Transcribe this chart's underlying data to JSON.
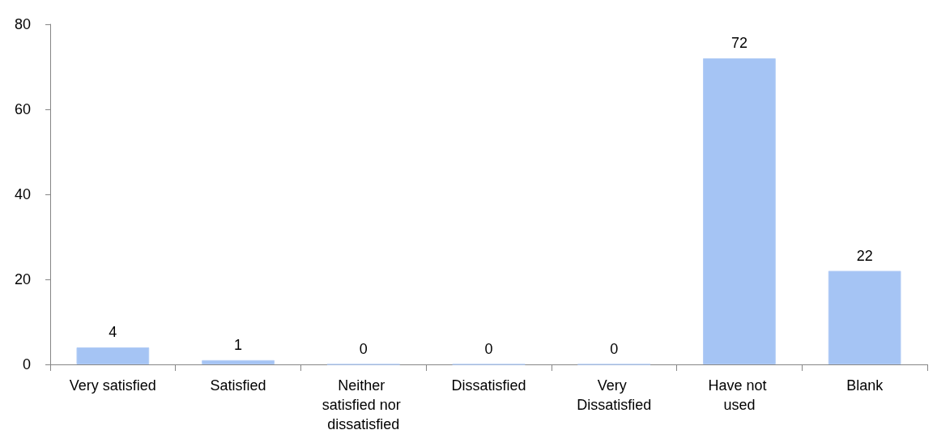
{
  "chart_data": {
    "type": "bar",
    "categories": [
      "Very satisfied",
      "Satisfied",
      "Neither satisfied nor dissatisfied",
      "Dissatisfied",
      "Very Dissatisfied",
      "Have not used",
      "Blank"
    ],
    "values": [
      4,
      1,
      0,
      0,
      0,
      72,
      22
    ],
    "color": "#a5c4f4",
    "ylim": [
      0,
      80
    ],
    "yticks": [
      0,
      20,
      40,
      60,
      80
    ],
    "grid": false,
    "data_labels": true
  }
}
